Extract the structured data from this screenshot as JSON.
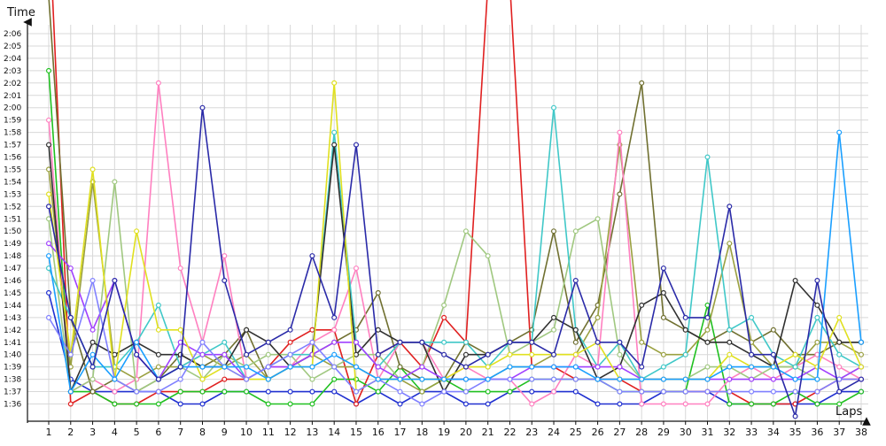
{
  "chart_data": {
    "type": "line",
    "title": "",
    "xlabel": "Laps",
    "ylabel": "Time",
    "xlim": [
      1,
      38
    ],
    "ylim": [
      "1:35.2",
      "2:08"
    ],
    "x_ticks": [
      "1",
      "2",
      "3",
      "4",
      "5",
      "6",
      "7",
      "8",
      "9",
      "10",
      "11",
      "12",
      "13",
      "14",
      "15",
      "16",
      "17",
      "18",
      "19",
      "20",
      "21",
      "22",
      "23",
      "24",
      "25",
      "26",
      "27",
      "28",
      "29",
      "30",
      "31",
      "32",
      "33",
      "34",
      "35",
      "36",
      "37",
      "38"
    ],
    "y_ticks": [
      "1:36",
      "1:37",
      "1:38",
      "1:39",
      "1:40",
      "1:41",
      "1:42",
      "1:43",
      "1:44",
      "1:45",
      "1:46",
      "1:47",
      "1:48",
      "1:49",
      "1:50",
      "1:51",
      "1:52",
      "1:53",
      "1:54",
      "1:55",
      "1:56",
      "1:57",
      "1:58",
      "1:59",
      "2:00",
      "2:01",
      "2:02",
      "2:03",
      "2:04",
      "2:05",
      "2:06"
    ],
    "grid": true,
    "legend": "none",
    "value_unit": "lap time in seconds",
    "series": [
      {
        "color": "#2030d0",
        "values": [
          105,
          98,
          97,
          97,
          97,
          97,
          96,
          96,
          97,
          97,
          97,
          97,
          97,
          97,
          96,
          97,
          96,
          97,
          97,
          96,
          96,
          97,
          97,
          97,
          97,
          96,
          96,
          96,
          97,
          97,
          97,
          96,
          96,
          96,
          96,
          96,
          97,
          97
        ]
      },
      {
        "color": "#e02020",
        "values": [
          136,
          96,
          97,
          96,
          96,
          97,
          97,
          97,
          98,
          98,
          99,
          101,
          102,
          102,
          96,
          100,
          101,
          99,
          103,
          101,
          130,
          130,
          99,
          99,
          98,
          98,
          98,
          97,
          97,
          97,
          97,
          97,
          96,
          96,
          96,
          97,
          98,
          98
        ]
      },
      {
        "color": "#20c020",
        "values": [
          123,
          97,
          97,
          96,
          96,
          96,
          97,
          97,
          97,
          97,
          96,
          96,
          96,
          98,
          98,
          97,
          99,
          97,
          98,
          97,
          97,
          97,
          98,
          98,
          98,
          98,
          97,
          97,
          97,
          97,
          104,
          96,
          96,
          96,
          97,
          96,
          96,
          97
        ]
      },
      {
        "color": "#707030",
        "values": [
          129,
          103,
          97,
          98,
          97,
          98,
          100,
          99,
          100,
          102,
          98,
          99,
          100,
          101,
          102,
          105,
          99,
          98,
          98,
          101,
          100,
          101,
          102,
          110,
          101,
          104,
          113,
          122,
          103,
          102,
          101,
          102,
          101,
          102,
          100,
          100,
          101,
          101
        ]
      },
      {
        "color": "#9aa040",
        "values": [
          115,
          99,
          114,
          99,
          98,
          99,
          99,
          100,
          99,
          100,
          98,
          99,
          100,
          99,
          99,
          98,
          98,
          97,
          98,
          98,
          98,
          99,
          99,
          100,
          100,
          103,
          117,
          101,
          100,
          100,
          102,
          109,
          101,
          99,
          99,
          101,
          101,
          100
        ]
      },
      {
        "color": "#ff80c0",
        "values": [
          119,
          97,
          98,
          97,
          98,
          122,
          107,
          101,
          108,
          98,
          99,
          99,
          101,
          102,
          107,
          98,
          101,
          101,
          98,
          99,
          98,
          98,
          96,
          97,
          100,
          99,
          118,
          96,
          96,
          96,
          96,
          98,
          99,
          98,
          99,
          100,
          99,
          98
        ]
      },
      {
        "color": "#a0c880",
        "values": [
          111,
          97,
          98,
          114,
          97,
          98,
          99,
          98,
          100,
          99,
          100,
          100,
          98,
          99,
          100,
          100,
          98,
          99,
          104,
          110,
          108,
          100,
          101,
          102,
          110,
          111,
          100,
          98,
          98,
          98,
          99,
          99,
          98,
          99,
          99,
          98,
          98,
          99
        ]
      },
      {
        "color": "#40c8c8",
        "values": [
          107,
          103,
          99,
          99,
          101,
          104,
          99,
          100,
          101,
          98,
          99,
          100,
          100,
          118,
          101,
          99,
          101,
          101,
          101,
          101,
          99,
          101,
          101,
          120,
          102,
          99,
          101,
          98,
          99,
          100,
          116,
          102,
          103,
          100,
          99,
          103,
          100,
          99
        ]
      },
      {
        "color": "#303030",
        "values": [
          117,
          97,
          101,
          100,
          101,
          100,
          100,
          99,
          99,
          102,
          101,
          99,
          100,
          117,
          100,
          102,
          101,
          101,
          97,
          100,
          100,
          101,
          101,
          103,
          102,
          98,
          99,
          104,
          105,
          102,
          101,
          101,
          100,
          99,
          106,
          104,
          101,
          101
        ]
      },
      {
        "color": "#a040ff",
        "values": [
          109,
          107,
          102,
          106,
          100,
          98,
          101,
          100,
          100,
          98,
          99,
          99,
          100,
          101,
          101,
          99,
          98,
          99,
          98,
          98,
          98,
          98,
          99,
          99,
          99,
          99,
          99,
          98,
          98,
          98,
          98,
          98,
          98,
          98,
          98,
          99,
          98,
          99
        ]
      },
      {
        "color": "#e0e020",
        "values": [
          113,
          100,
          115,
          98,
          110,
          102,
          102,
          98,
          99,
          98,
          98,
          99,
          99,
          122,
          97,
          98,
          98,
          98,
          98,
          99,
          99,
          100,
          100,
          100,
          100,
          101,
          98,
          98,
          98,
          98,
          98,
          100,
          99,
          99,
          100,
          99,
          103,
          99
        ]
      },
      {
        "color": "#8080ff",
        "values": [
          103,
          100,
          106,
          98,
          97,
          97,
          98,
          101,
          99,
          98,
          99,
          100,
          101,
          99,
          97,
          98,
          97,
          96,
          97,
          97,
          98,
          98,
          98,
          98,
          98,
          98,
          97,
          97,
          97,
          97,
          97,
          97,
          97,
          97,
          97,
          97,
          98,
          98
        ]
      },
      {
        "color": "#1a9fff",
        "values": [
          108,
          97,
          100,
          98,
          101,
          98,
          99,
          99,
          99,
          99,
          98,
          99,
          99,
          100,
          99,
          98,
          98,
          98,
          98,
          98,
          98,
          99,
          99,
          99,
          99,
          98,
          98,
          98,
          98,
          98,
          98,
          99,
          99,
          99,
          98,
          98,
          118,
          101
        ]
      },
      {
        "color": "#2a2aa8",
        "values": [
          112,
          103,
          99,
          106,
          100,
          98,
          99,
          120,
          106,
          100,
          101,
          102,
          108,
          103,
          117,
          100,
          101,
          101,
          100,
          99,
          100,
          101,
          101,
          100,
          106,
          101,
          101,
          99,
          107,
          103,
          103,
          112,
          100,
          100,
          95,
          106,
          97,
          98
        ]
      }
    ]
  }
}
